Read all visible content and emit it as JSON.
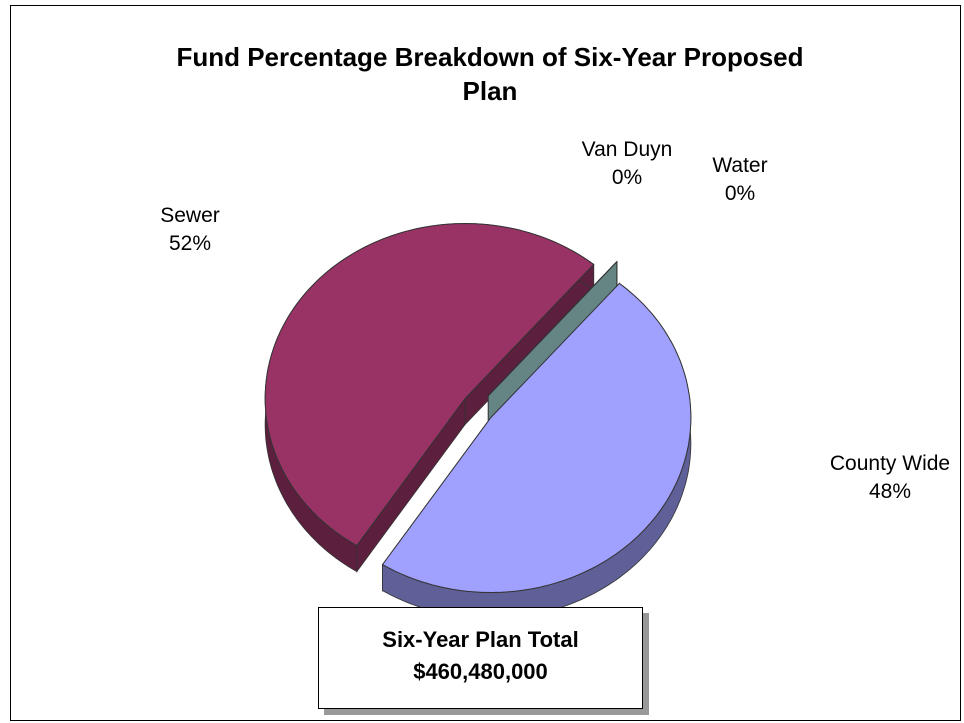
{
  "chart_data": {
    "type": "pie3d",
    "title": "Fund Percentage Breakdown of Six-Year Proposed Plan",
    "categories": [
      "County Wide",
      "Sewer",
      "Van Duyn",
      "Water"
    ],
    "values": [
      48,
      52,
      0,
      0
    ],
    "value_labels": [
      "48%",
      "52%",
      "0%",
      "0%"
    ],
    "colors": [
      "#a0a0ff",
      "#993366",
      "#e8e2b4",
      "#a8dcdc"
    ],
    "annotation": [
      "Six-Year Plan Total",
      "$460,480,000"
    ]
  }
}
